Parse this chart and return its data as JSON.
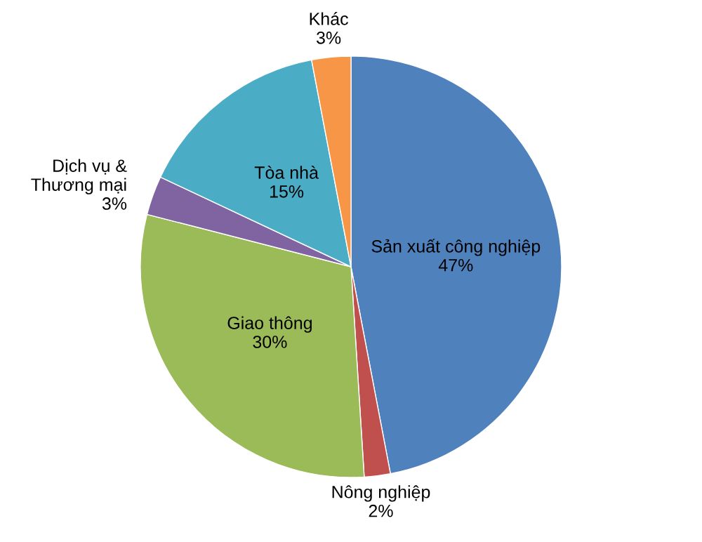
{
  "chart_data": {
    "type": "pie",
    "categories": [
      "Sản xuất công nghiệp",
      "Nông nghiệp",
      "Giao thông",
      "Dịch vụ & Thương mại",
      "Tòa nhà",
      "Khác"
    ],
    "values": [
      47,
      2,
      30,
      3,
      15,
      3
    ],
    "value_labels": [
      "47%",
      "2%",
      "30%",
      "3%",
      "15%",
      "3%"
    ],
    "colors": [
      "#4f81bd",
      "#c0504d",
      "#9bbb59",
      "#8064a2",
      "#4bacc6",
      "#f79646"
    ]
  }
}
